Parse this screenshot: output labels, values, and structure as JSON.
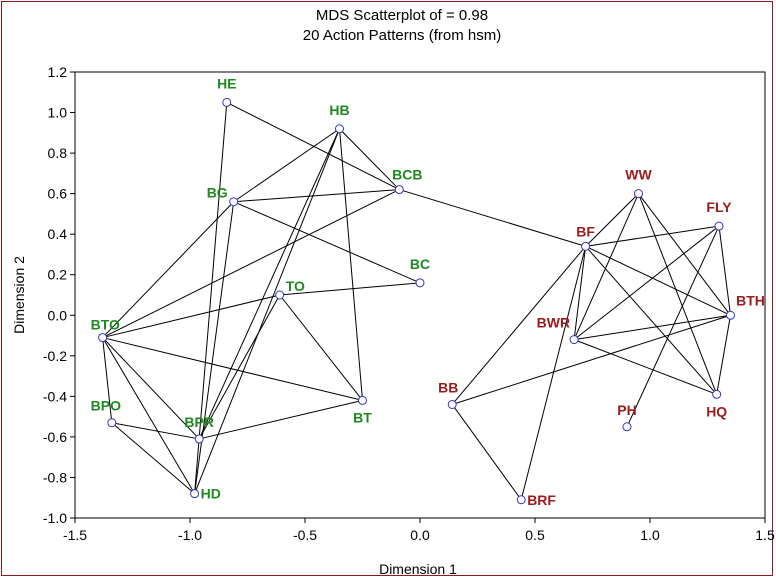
{
  "chart_data": {
    "type": "scatter",
    "title": "MDS Scatterplot of = 0.98",
    "subtitle": "20 Action Patterns (from hsm)",
    "xlabel": "Dimension 1",
    "ylabel": "Dimension 2",
    "xlim": [
      -1.5,
      1.5
    ],
    "ylim": [
      -1.0,
      1.2
    ],
    "x_ticks": [
      -1.5,
      -1.0,
      -0.5,
      0.0,
      0.5,
      1.0,
      1.5
    ],
    "x_tick_labels": [
      "-1.5",
      "-1.0",
      "-0.5",
      "0.0",
      "0.5",
      "1.0",
      "1.5"
    ],
    "y_ticks": [
      1.2,
      1.0,
      0.8,
      0.6,
      0.4,
      0.2,
      0.0,
      -0.2,
      -0.4,
      -0.6,
      -0.8,
      -1.0
    ],
    "y_tick_labels": [
      "1.2",
      "1.0",
      "0.8",
      "0.6",
      "0.4",
      "0.2",
      "0.0",
      "-0.2",
      "-0.4",
      "-0.6",
      "-0.8",
      "-1.0"
    ],
    "grid": false,
    "colors": {
      "group_a": "#1f8a1f",
      "group_b": "#9b1c1c",
      "marker": "#3333cc",
      "edge": "#000000"
    },
    "points": [
      {
        "label": "HE",
        "x": -0.84,
        "y": 1.05,
        "group": "a"
      },
      {
        "label": "HB",
        "x": -0.35,
        "y": 0.92,
        "group": "a"
      },
      {
        "label": "BCB",
        "x": -0.09,
        "y": 0.62,
        "group": "a"
      },
      {
        "label": "BG",
        "x": -0.81,
        "y": 0.56,
        "group": "a"
      },
      {
        "label": "BC",
        "x": 0.0,
        "y": 0.16,
        "group": "a"
      },
      {
        "label": "TO",
        "x": -0.61,
        "y": 0.1,
        "group": "a"
      },
      {
        "label": "BTO",
        "x": -1.38,
        "y": -0.11,
        "group": "a"
      },
      {
        "label": "BT",
        "x": -0.25,
        "y": -0.42,
        "group": "a"
      },
      {
        "label": "BPO",
        "x": -1.34,
        "y": -0.53,
        "group": "a"
      },
      {
        "label": "BPR",
        "x": -0.96,
        "y": -0.61,
        "group": "a"
      },
      {
        "label": "HD",
        "x": -0.98,
        "y": -0.88,
        "group": "a"
      },
      {
        "label": "WW",
        "x": 0.95,
        "y": 0.6,
        "group": "b"
      },
      {
        "label": "FLY",
        "x": 1.3,
        "y": 0.44,
        "group": "b"
      },
      {
        "label": "BF",
        "x": 0.72,
        "y": 0.34,
        "group": "b"
      },
      {
        "label": "BTH",
        "x": 1.35,
        "y": 0.0,
        "group": "b"
      },
      {
        "label": "BWR",
        "x": 0.67,
        "y": -0.12,
        "group": "b"
      },
      {
        "label": "BB",
        "x": 0.14,
        "y": -0.44,
        "group": "b"
      },
      {
        "label": "HQ",
        "x": 1.29,
        "y": -0.39,
        "group": "b"
      },
      {
        "label": "PH",
        "x": 0.9,
        "y": -0.55,
        "group": "b"
      },
      {
        "label": "BRF",
        "x": 0.44,
        "y": -0.91,
        "group": "b"
      }
    ],
    "edges": [
      [
        "HE",
        "HD"
      ],
      [
        "HE",
        "BCB"
      ],
      [
        "HB",
        "BG"
      ],
      [
        "HB",
        "HD"
      ],
      [
        "HB",
        "BT"
      ],
      [
        "HB",
        "BPR"
      ],
      [
        "HB",
        "BCB"
      ],
      [
        "BG",
        "BCB"
      ],
      [
        "BG",
        "BC"
      ],
      [
        "BG",
        "BTO"
      ],
      [
        "BG",
        "HD"
      ],
      [
        "BCB",
        "BTO"
      ],
      [
        "BCB",
        "BF"
      ],
      [
        "TO",
        "BTO"
      ],
      [
        "TO",
        "BC"
      ],
      [
        "TO",
        "BPR"
      ],
      [
        "TO",
        "BT"
      ],
      [
        "BTO",
        "BT"
      ],
      [
        "BTO",
        "BPO"
      ],
      [
        "BTO",
        "BPR"
      ],
      [
        "BTO",
        "HD"
      ],
      [
        "BPO",
        "HD"
      ],
      [
        "BPO",
        "BPR"
      ],
      [
        "BPR",
        "BT"
      ],
      [
        "BF",
        "WW"
      ],
      [
        "BF",
        "FLY"
      ],
      [
        "BF",
        "BTH"
      ],
      [
        "BF",
        "BWR"
      ],
      [
        "BF",
        "BB"
      ],
      [
        "BF",
        "BRF"
      ],
      [
        "BF",
        "HQ"
      ],
      [
        "WW",
        "BWR"
      ],
      [
        "WW",
        "BTH"
      ],
      [
        "WW",
        "HQ"
      ],
      [
        "FLY",
        "BWR"
      ],
      [
        "FLY",
        "BTH"
      ],
      [
        "FLY",
        "PH"
      ],
      [
        "BTH",
        "BWR"
      ],
      [
        "BTH",
        "BB"
      ],
      [
        "BTH",
        "HQ"
      ],
      [
        "BWR",
        "HQ"
      ],
      [
        "BB",
        "BRF"
      ]
    ]
  }
}
